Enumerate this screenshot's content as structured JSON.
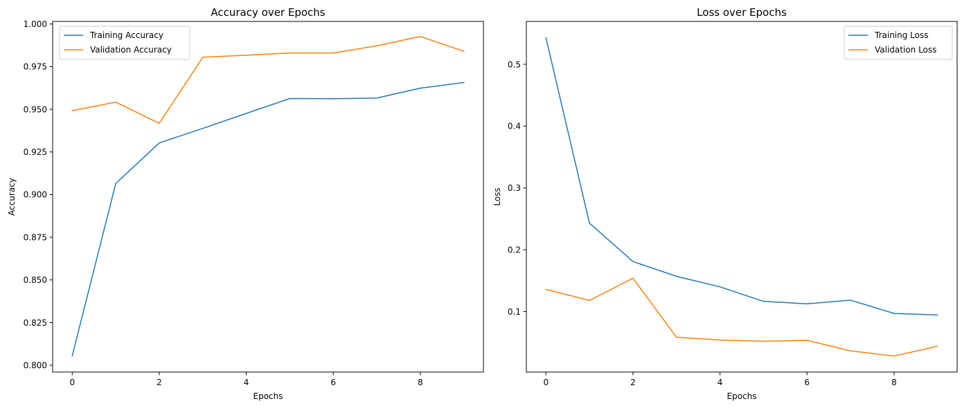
{
  "chart_data": [
    {
      "type": "line",
      "title": "Accuracy over Epochs",
      "xlabel": "Epochs",
      "ylabel": "Accuracy",
      "xlim": [
        -0.45,
        9.45
      ],
      "ylim": [
        0.796,
        1.0015
      ],
      "xticks": [
        0,
        2,
        4,
        6,
        8
      ],
      "xtick_labels": [
        "0",
        "2",
        "4",
        "6",
        "8"
      ],
      "yticks": [
        0.8,
        0.825,
        0.85,
        0.875,
        0.9,
        0.925,
        0.95,
        0.975,
        1.0
      ],
      "ytick_labels": [
        "0.800",
        "0.825",
        "0.850",
        "0.875",
        "0.900",
        "0.925",
        "0.950",
        "0.975",
        "1.000"
      ],
      "grid": false,
      "legend": "upper-left",
      "x": [
        0,
        1,
        2,
        3,
        4,
        5,
        6,
        7,
        8,
        9
      ],
      "series": [
        {
          "name": "Training Accuracy",
          "color": "#1f77b4",
          "values": [
            0.8055,
            0.9065,
            0.9303,
            0.9388,
            0.9476,
            0.9563,
            0.9562,
            0.9566,
            0.9624,
            0.9657
          ]
        },
        {
          "name": "Validation Accuracy",
          "color": "#ff7f0e",
          "values": [
            0.9492,
            0.9542,
            0.9418,
            0.9805,
            0.9817,
            0.983,
            0.983,
            0.9872,
            0.9927,
            0.984
          ]
        }
      ]
    },
    {
      "type": "line",
      "title": "Loss over Epochs",
      "xlabel": "Epochs",
      "ylabel": "Loss",
      "xlim": [
        -0.45,
        9.45
      ],
      "ylim": [
        0.0022,
        0.5693
      ],
      "xticks": [
        0,
        2,
        4,
        6,
        8
      ],
      "xtick_labels": [
        "0",
        "2",
        "4",
        "6",
        "8"
      ],
      "yticks": [
        0.1,
        0.2,
        0.3,
        0.4,
        0.5
      ],
      "ytick_labels": [
        "0.1",
        "0.2",
        "0.3",
        "0.4",
        "0.5"
      ],
      "grid": false,
      "legend": "upper-right",
      "x": [
        0,
        1,
        2,
        3,
        4,
        5,
        6,
        7,
        8,
        9
      ],
      "series": [
        {
          "name": "Training Loss",
          "color": "#1f77b4",
          "values": [
            0.543,
            0.243,
            0.181,
            0.157,
            0.14,
            0.1165,
            0.1125,
            0.1185,
            0.097,
            0.0945
          ]
        },
        {
          "name": "Validation Loss",
          "color": "#ff7f0e",
          "values": [
            0.136,
            0.118,
            0.154,
            0.0585,
            0.054,
            0.052,
            0.0535,
            0.0365,
            0.028,
            0.044
          ]
        }
      ]
    }
  ]
}
